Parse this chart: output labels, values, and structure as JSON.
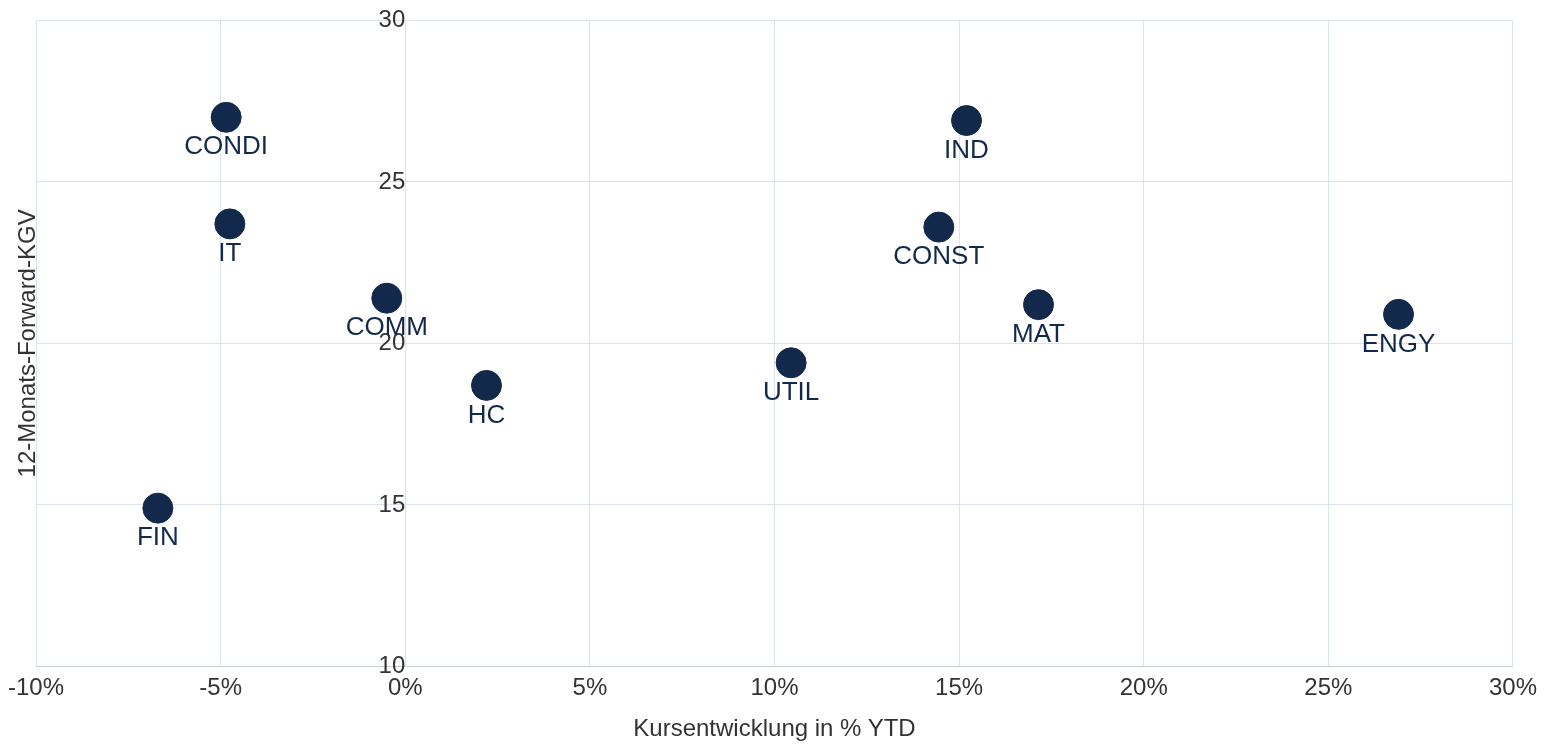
{
  "chart_data": {
    "type": "scatter",
    "xlabel": "Kursentwicklung in % YTD",
    "ylabel": "12-Monats-Forward-KGV",
    "xlim": [
      -10,
      30
    ],
    "xticks": [
      {
        "value": -10,
        "label": "-10%"
      },
      {
        "value": -5,
        "label": "-5%"
      },
      {
        "value": 0,
        "label": "0%"
      },
      {
        "value": 5,
        "label": "5%"
      },
      {
        "value": 10,
        "label": "10%"
      },
      {
        "value": 15,
        "label": "15%"
      },
      {
        "value": 20,
        "label": "20%"
      },
      {
        "value": 25,
        "label": "25%"
      },
      {
        "value": 30,
        "label": "30%"
      }
    ],
    "ylim": [
      10,
      30
    ],
    "yticks": [
      10,
      15,
      20,
      25,
      30
    ],
    "grid": true,
    "marker": "circle",
    "series": [
      {
        "color": "#13294b",
        "x": [
          -4.85,
          -4.75,
          -0.5,
          -6.7,
          2.2,
          10.45,
          14.45,
          15.2,
          17.15,
          26.9
        ],
        "values": [
          27.0,
          23.7,
          21.4,
          14.9,
          18.7,
          19.4,
          23.6,
          26.9,
          21.2,
          20.9
        ],
        "value_labels": [
          "CONDI",
          "IT",
          "COMM",
          "FIN",
          "HC",
          "UTIL",
          "CONST",
          "IND",
          "MAT",
          "ENGY"
        ]
      }
    ]
  }
}
